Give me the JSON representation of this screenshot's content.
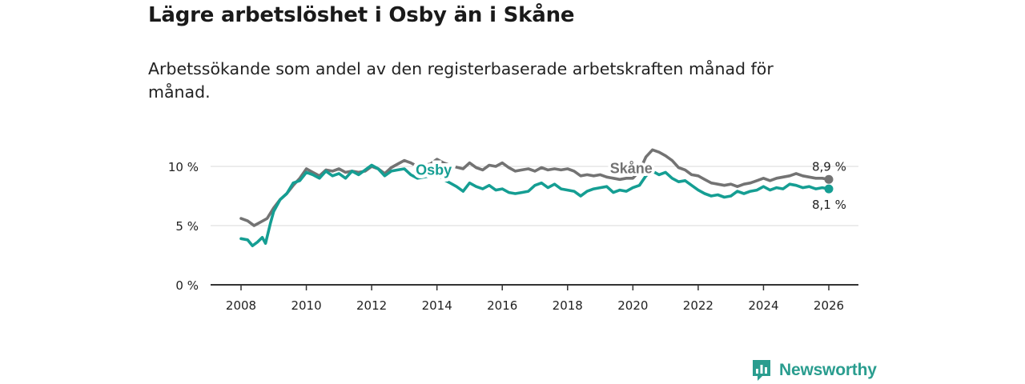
{
  "title": "Lägre arbetslöshet i Osby än i Skåne",
  "subtitle": "Arbetssökande som andel av den registerbaserade arbetskraften månad för månad.",
  "brand": {
    "name": "Newsworthy",
    "logo_icon": "bar-chart-bubble-icon"
  },
  "colors": {
    "osby": "#159e93",
    "skane": "#737373",
    "grid": "#d9d9d9",
    "axis": "#333333",
    "brand": "#2a9d8f"
  },
  "chart_data": {
    "type": "line",
    "title": "Lägre arbetslöshet i Osby än i Skåne",
    "xlabel": "",
    "ylabel": "",
    "xlim": [
      2007.1,
      2026.9
    ],
    "ylim": [
      0,
      10
    ],
    "x_ticks": [
      2008,
      2010,
      2012,
      2014,
      2016,
      2018,
      2020,
      2022,
      2024,
      2026
    ],
    "x_tick_labels": [
      "2008",
      "2010",
      "2012",
      "2014",
      "2016",
      "2018",
      "2020",
      "2022",
      "2024",
      "2026"
    ],
    "y_ticks": [
      0,
      5,
      10
    ],
    "y_tick_labels": [
      "0 %",
      "5 %",
      "10 %"
    ],
    "grid": true,
    "series": [
      {
        "name": "Skåne",
        "label": "Skåne",
        "end_label": "8,9 %",
        "end_value": 8.9,
        "points": [
          [
            2008.0,
            5.6
          ],
          [
            2008.2,
            5.4
          ],
          [
            2008.4,
            5.0
          ],
          [
            2008.6,
            5.3
          ],
          [
            2008.8,
            5.6
          ],
          [
            2009.0,
            6.5
          ],
          [
            2009.2,
            7.2
          ],
          [
            2009.4,
            7.7
          ],
          [
            2009.6,
            8.4
          ],
          [
            2009.8,
            9.0
          ],
          [
            2010.0,
            9.8
          ],
          [
            2010.2,
            9.5
          ],
          [
            2010.4,
            9.2
          ],
          [
            2010.6,
            9.7
          ],
          [
            2010.8,
            9.6
          ],
          [
            2011.0,
            9.8
          ],
          [
            2011.2,
            9.5
          ],
          [
            2011.4,
            9.6
          ],
          [
            2011.6,
            9.5
          ],
          [
            2011.8,
            9.6
          ],
          [
            2012.0,
            10.0
          ],
          [
            2012.2,
            9.8
          ],
          [
            2012.4,
            9.4
          ],
          [
            2012.6,
            9.9
          ],
          [
            2012.8,
            10.2
          ],
          [
            2013.0,
            10.5
          ],
          [
            2013.2,
            10.3
          ],
          [
            2013.4,
            10.0
          ],
          [
            2013.6,
            10.1
          ],
          [
            2013.8,
            10.2
          ],
          [
            2014.0,
            10.6
          ],
          [
            2014.2,
            10.3
          ],
          [
            2014.5,
            10.0
          ],
          [
            2014.8,
            9.8
          ],
          [
            2015.0,
            10.3
          ],
          [
            2015.2,
            9.9
          ],
          [
            2015.4,
            9.7
          ],
          [
            2015.6,
            10.1
          ],
          [
            2015.8,
            10.0
          ],
          [
            2016.0,
            10.3
          ],
          [
            2016.2,
            9.9
          ],
          [
            2016.4,
            9.6
          ],
          [
            2016.6,
            9.7
          ],
          [
            2016.8,
            9.8
          ],
          [
            2017.0,
            9.6
          ],
          [
            2017.2,
            9.9
          ],
          [
            2017.4,
            9.7
          ],
          [
            2017.6,
            9.8
          ],
          [
            2017.8,
            9.7
          ],
          [
            2018.0,
            9.8
          ],
          [
            2018.2,
            9.6
          ],
          [
            2018.4,
            9.2
          ],
          [
            2018.6,
            9.3
          ],
          [
            2018.8,
            9.2
          ],
          [
            2019.0,
            9.3
          ],
          [
            2019.2,
            9.1
          ],
          [
            2019.4,
            9.0
          ],
          [
            2019.6,
            8.9
          ],
          [
            2019.8,
            9.0
          ],
          [
            2020.0,
            9.0
          ],
          [
            2020.2,
            9.6
          ],
          [
            2020.4,
            10.8
          ],
          [
            2020.6,
            11.4
          ],
          [
            2020.8,
            11.2
          ],
          [
            2021.0,
            10.9
          ],
          [
            2021.2,
            10.5
          ],
          [
            2021.4,
            9.9
          ],
          [
            2021.6,
            9.7
          ],
          [
            2021.8,
            9.3
          ],
          [
            2022.0,
            9.2
          ],
          [
            2022.2,
            8.9
          ],
          [
            2022.4,
            8.6
          ],
          [
            2022.6,
            8.5
          ],
          [
            2022.8,
            8.4
          ],
          [
            2023.0,
            8.5
          ],
          [
            2023.2,
            8.3
          ],
          [
            2023.4,
            8.5
          ],
          [
            2023.6,
            8.6
          ],
          [
            2023.8,
            8.8
          ],
          [
            2024.0,
            9.0
          ],
          [
            2024.2,
            8.8
          ],
          [
            2024.4,
            9.0
          ],
          [
            2024.6,
            9.1
          ],
          [
            2024.8,
            9.2
          ],
          [
            2025.0,
            9.4
          ],
          [
            2025.2,
            9.2
          ],
          [
            2025.4,
            9.1
          ],
          [
            2025.6,
            9.0
          ],
          [
            2025.8,
            9.0
          ],
          [
            2026.0,
            8.9
          ]
        ]
      },
      {
        "name": "Osby",
        "label": "Osby",
        "end_label": "8,1 %",
        "end_value": 8.1,
        "points": [
          [
            2008.0,
            3.9
          ],
          [
            2008.2,
            3.8
          ],
          [
            2008.35,
            3.3
          ],
          [
            2008.5,
            3.6
          ],
          [
            2008.65,
            4.0
          ],
          [
            2008.75,
            3.5
          ],
          [
            2008.9,
            5.2
          ],
          [
            2009.0,
            6.2
          ],
          [
            2009.2,
            7.2
          ],
          [
            2009.4,
            7.7
          ],
          [
            2009.6,
            8.6
          ],
          [
            2009.8,
            8.8
          ],
          [
            2010.0,
            9.5
          ],
          [
            2010.2,
            9.3
          ],
          [
            2010.4,
            9.0
          ],
          [
            2010.6,
            9.6
          ],
          [
            2010.8,
            9.2
          ],
          [
            2011.0,
            9.4
          ],
          [
            2011.2,
            9.0
          ],
          [
            2011.4,
            9.6
          ],
          [
            2011.6,
            9.3
          ],
          [
            2011.8,
            9.7
          ],
          [
            2012.0,
            10.1
          ],
          [
            2012.2,
            9.8
          ],
          [
            2012.4,
            9.2
          ],
          [
            2012.6,
            9.6
          ],
          [
            2012.8,
            9.7
          ],
          [
            2013.0,
            9.8
          ],
          [
            2013.2,
            9.3
          ],
          [
            2013.4,
            9.0
          ],
          [
            2013.6,
            9.1
          ],
          [
            2013.8,
            9.2
          ],
          [
            2014.0,
            9.4
          ],
          [
            2014.2,
            8.9
          ],
          [
            2014.4,
            8.6
          ],
          [
            2014.6,
            8.3
          ],
          [
            2014.8,
            7.9
          ],
          [
            2015.0,
            8.6
          ],
          [
            2015.2,
            8.3
          ],
          [
            2015.4,
            8.1
          ],
          [
            2015.6,
            8.4
          ],
          [
            2015.8,
            8.0
          ],
          [
            2016.0,
            8.1
          ],
          [
            2016.2,
            7.8
          ],
          [
            2016.4,
            7.7
          ],
          [
            2016.6,
            7.8
          ],
          [
            2016.8,
            7.9
          ],
          [
            2017.0,
            8.4
          ],
          [
            2017.2,
            8.6
          ],
          [
            2017.4,
            8.2
          ],
          [
            2017.6,
            8.5
          ],
          [
            2017.8,
            8.1
          ],
          [
            2018.0,
            8.0
          ],
          [
            2018.2,
            7.9
          ],
          [
            2018.4,
            7.5
          ],
          [
            2018.6,
            7.9
          ],
          [
            2018.8,
            8.1
          ],
          [
            2019.0,
            8.2
          ],
          [
            2019.2,
            8.3
          ],
          [
            2019.4,
            7.8
          ],
          [
            2019.6,
            8.0
          ],
          [
            2019.8,
            7.9
          ],
          [
            2020.0,
            8.2
          ],
          [
            2020.2,
            8.4
          ],
          [
            2020.4,
            9.2
          ],
          [
            2020.6,
            9.6
          ],
          [
            2020.8,
            9.3
          ],
          [
            2021.0,
            9.5
          ],
          [
            2021.2,
            9.0
          ],
          [
            2021.4,
            8.7
          ],
          [
            2021.6,
            8.8
          ],
          [
            2021.8,
            8.4
          ],
          [
            2022.0,
            8.0
          ],
          [
            2022.2,
            7.7
          ],
          [
            2022.4,
            7.5
          ],
          [
            2022.6,
            7.6
          ],
          [
            2022.8,
            7.4
          ],
          [
            2023.0,
            7.5
          ],
          [
            2023.2,
            7.9
          ],
          [
            2023.4,
            7.7
          ],
          [
            2023.6,
            7.9
          ],
          [
            2023.8,
            8.0
          ],
          [
            2024.0,
            8.3
          ],
          [
            2024.2,
            8.0
          ],
          [
            2024.4,
            8.2
          ],
          [
            2024.6,
            8.1
          ],
          [
            2024.8,
            8.5
          ],
          [
            2025.0,
            8.4
          ],
          [
            2025.2,
            8.2
          ],
          [
            2025.4,
            8.3
          ],
          [
            2025.6,
            8.1
          ],
          [
            2025.8,
            8.2
          ],
          [
            2026.0,
            8.1
          ]
        ]
      }
    ]
  }
}
